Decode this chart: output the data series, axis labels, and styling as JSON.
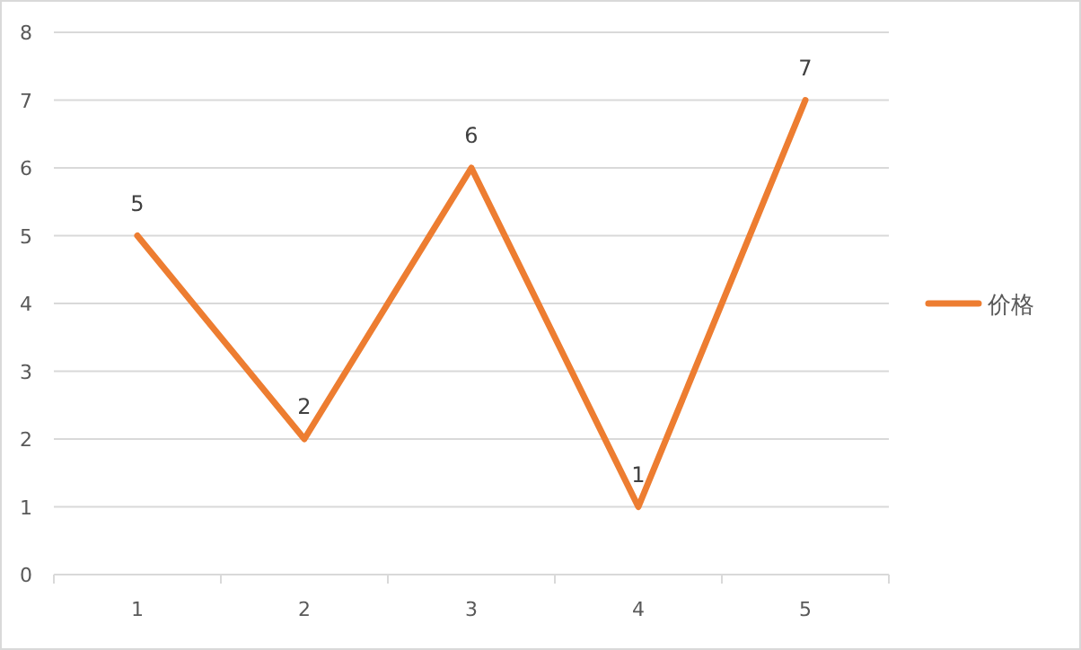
{
  "chart_data": {
    "type": "line",
    "categories": [
      "1",
      "2",
      "3",
      "4",
      "5"
    ],
    "series": [
      {
        "name": "价格",
        "color": "#ed7d31",
        "values": [
          5,
          2,
          6,
          1,
          7
        ]
      }
    ],
    "ylim": [
      0,
      8
    ],
    "yticks": [
      0,
      1,
      2,
      3,
      4,
      5,
      6,
      7,
      8
    ],
    "grid": "y",
    "legend": "right",
    "data_labels": true
  }
}
